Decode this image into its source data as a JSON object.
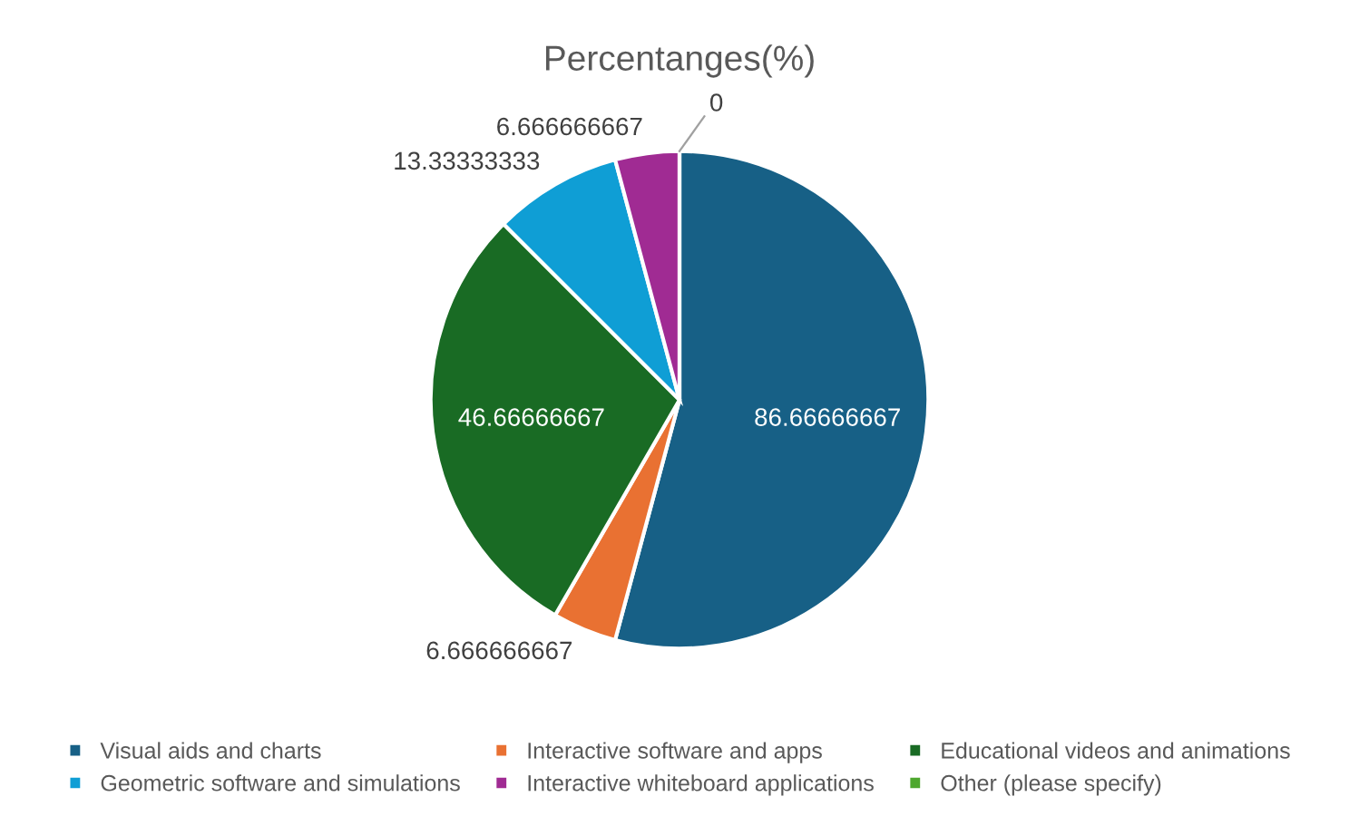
{
  "chart_data": {
    "type": "pie",
    "title": "Percentanges(%)",
    "categories": [
      "Visual aids and charts",
      "Interactive software and apps",
      "Educational videos and animations",
      "Geometric software and simulations",
      "Interactive whiteboard applications",
      "Other (please specify)"
    ],
    "values": [
      86.66666667,
      6.666666667,
      46.66666667,
      13.33333333,
      6.666666667,
      0
    ],
    "colors": [
      "#176086",
      "#e97132",
      "#196b24",
      "#0f9ed5",
      "#a02b93",
      "#4ea72e"
    ],
    "value_labels": [
      "86.66666667",
      "6.666666667",
      "46.66666667",
      "13.33333333",
      "6.666666667",
      "0"
    ],
    "legend": "bottom"
  }
}
